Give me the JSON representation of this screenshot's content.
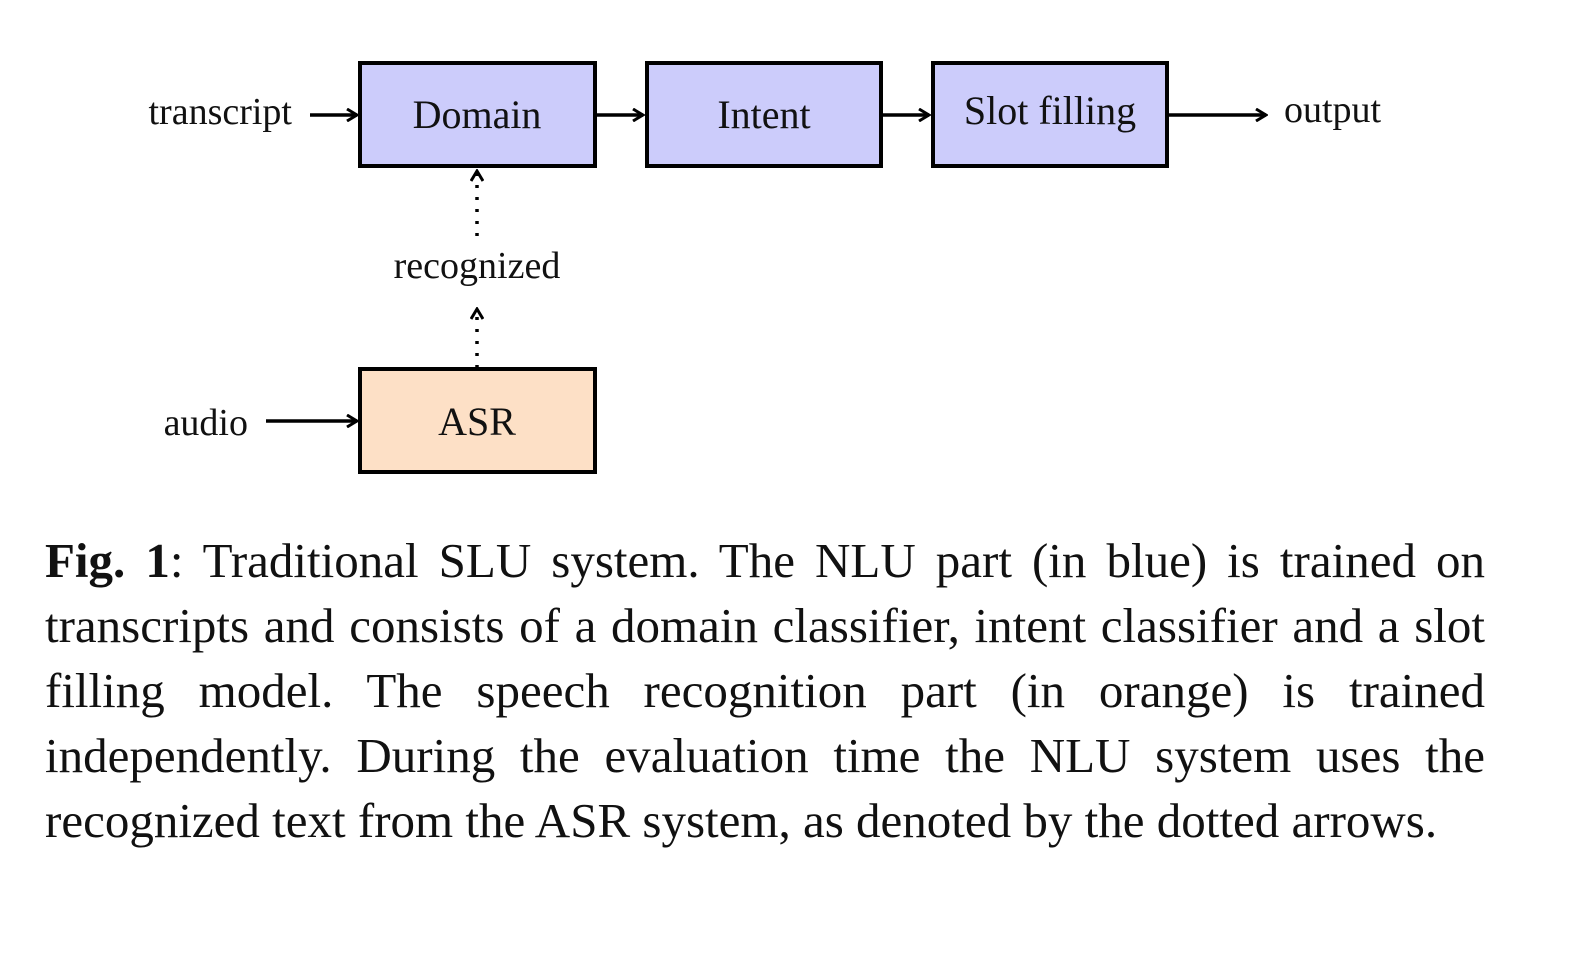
{
  "diagram": {
    "title": "Traditional SLU system",
    "colors": {
      "nlu_fill": "#ccccfb",
      "asr_fill": "#fde0c6",
      "stroke": "#000000"
    },
    "inputs": {
      "transcript": "transcript",
      "audio": "audio"
    },
    "boxes": {
      "domain": "Domain",
      "intent": "Intent",
      "slot": "Slot filling",
      "asr": "ASR"
    },
    "recognized": "recognized",
    "output": "output"
  },
  "caption": {
    "fig_label": "Fig. 1",
    "text": ": Traditional SLU system. The NLU part (in blue) is trained on transcripts and consists of a domain classifier, intent classifier and a slot filling model. The speech recognition part (in orange) is trained independently. During the evaluation time the NLU system uses the recognized text from the ASR system, as denoted by the dotted arrows."
  }
}
